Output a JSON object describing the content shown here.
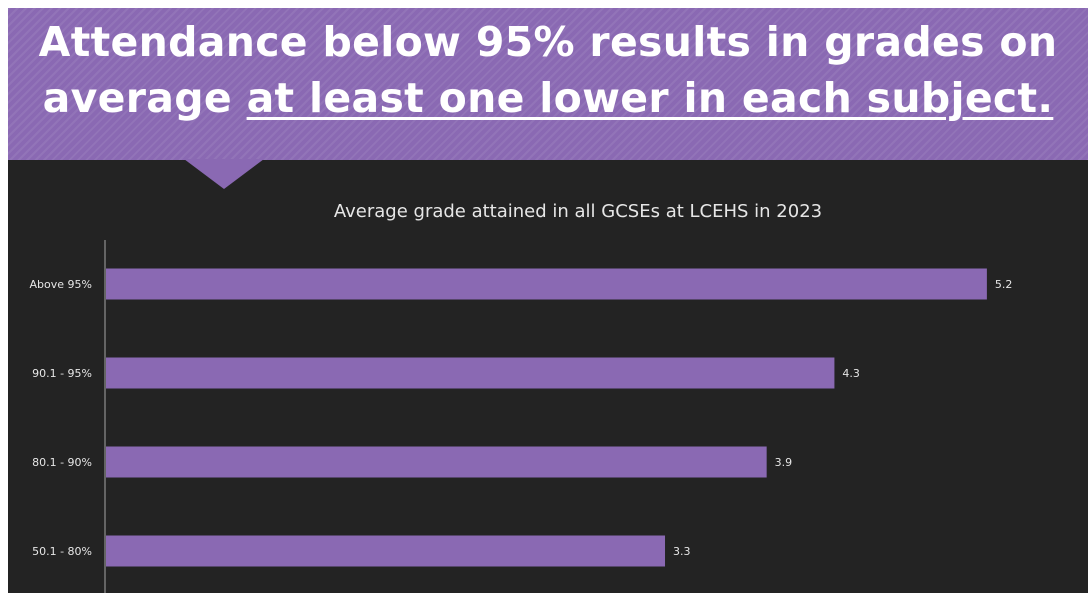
{
  "headline": {
    "line1": "Attendance below 95% results in grades on",
    "line2_plain": "average ",
    "line2_underlined": "at least one lower in each subject."
  },
  "colors": {
    "banner": "#8a69b3",
    "background": "#232323",
    "bar": "#8a69b3",
    "text": "#e6e6e6"
  },
  "chart_data": {
    "type": "bar",
    "orientation": "horizontal",
    "title": "Average grade attained in all GCSEs at LCEHS in 2023",
    "categories": [
      "Above 95%",
      "90.1 - 95%",
      "80.1 - 90%",
      "50.1 - 80%"
    ],
    "values": [
      5.2,
      4.3,
      3.9,
      3.3
    ],
    "value_labels": [
      "5.2",
      "4.3",
      "3.9",
      "3.3"
    ],
    "xlim": [
      0,
      6
    ],
    "grid": false,
    "legend": "none"
  }
}
